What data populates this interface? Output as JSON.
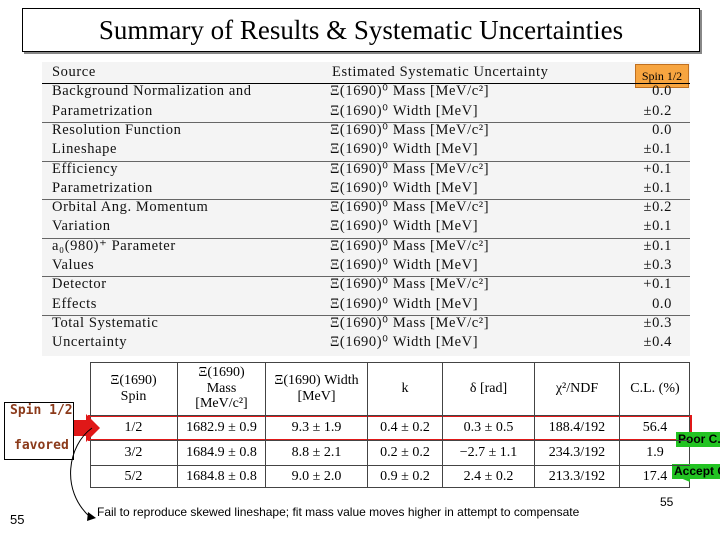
{
  "title": "Summary of Results & Systematic Uncertainties",
  "systematics": {
    "header": [
      "Source",
      "Estimated Systematic Uncertainty"
    ],
    "badge": "Spin 1/2",
    "rows": [
      [
        "Background Normalization and",
        "Ξ(1690)⁰ Mass [MeV/c²]",
        "0.0"
      ],
      [
        "Parametrization",
        "Ξ(1690)⁰ Width [MeV]",
        "±0.2"
      ],
      [
        "Resolution Function",
        "Ξ(1690)⁰ Mass [MeV/c²]",
        "0.0"
      ],
      [
        "Lineshape",
        "Ξ(1690)⁰ Width [MeV]",
        "±0.1"
      ],
      [
        "Efficiency",
        "Ξ(1690)⁰ Mass [MeV/c²]",
        "+0.1"
      ],
      [
        "Parametrization",
        "Ξ(1690)⁰ Width [MeV]",
        "±0.1"
      ],
      [
        "Orbital Ang. Momentum",
        "Ξ(1690)⁰ Mass [MeV/c²]",
        "±0.2"
      ],
      [
        "Variation",
        "Ξ(1690)⁰ Width [MeV]",
        "±0.1"
      ],
      [
        "a₀(980)⁺ Parameter",
        "Ξ(1690)⁰ Mass [MeV/c²]",
        "±0.1"
      ],
      [
        "Values",
        "Ξ(1690)⁰ Width [MeV]",
        "±0.3"
      ],
      [
        "Detector",
        "Ξ(1690)⁰ Mass [MeV/c²]",
        "+0.1"
      ],
      [
        "Effects",
        "Ξ(1690)⁰ Width [MeV]",
        "0.0"
      ],
      [
        "Total Systematic",
        "Ξ(1690)⁰ Mass [MeV/c²]",
        "±0.3"
      ],
      [
        "Uncertainty",
        "Ξ(1690)⁰ Width [MeV]",
        "±0.4"
      ]
    ]
  },
  "fits": {
    "header": [
      "Ξ(1690) Spin",
      "Ξ(1690) Mass [MeV/c²]",
      "Ξ(1690) Width [MeV]",
      "k",
      "δ [rad]",
      "χ²/NDF",
      "C.L. (%)"
    ],
    "rows": [
      [
        "1/2",
        "1682.9 ± 0.9",
        "9.3 ± 1.9",
        "0.4 ± 0.2",
        "0.3 ± 0.5",
        "188.4/192",
        "56.4"
      ],
      [
        "3/2",
        "1684.9 ± 0.8",
        "8.8 ± 2.1",
        "0.2 ± 0.2",
        "−2.7 ± 1.1",
        "234.3/192",
        "1.9"
      ],
      [
        "5/2",
        "1684.8 ± 0.8",
        "9.0 ± 2.0",
        "0.9 ± 0.2",
        "2.4 ± 0.2",
        "213.3/192",
        "17.4"
      ]
    ]
  },
  "notes": {
    "spin": "Spin 1/2",
    "favored": "favored",
    "poor": "Poor C.L.",
    "accept": "Accept C.L.",
    "footnote": "Fail to reproduce skewed lineshape;  fit mass value moves higher in attempt to compensate",
    "page_left": "55",
    "page_right": "55"
  }
}
